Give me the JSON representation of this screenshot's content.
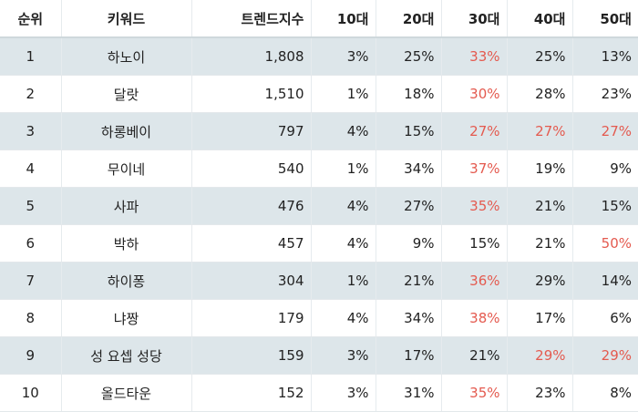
{
  "header": {
    "rank": "순위",
    "keyword": "키워드",
    "trend_index": "트렌드지수",
    "age10": "10대",
    "age20": "20대",
    "age30": "30대",
    "age40": "40대",
    "age50": "50대"
  },
  "colors": {
    "highlight": "#e45a4f",
    "row_shade": "#dde6ea"
  },
  "rows": [
    {
      "rank": "1",
      "keyword": "하노이",
      "index": "1,808",
      "a10": "3%",
      "a20": "25%",
      "a30": "33%",
      "a40": "25%",
      "a50": "13%",
      "hot": [
        "a30"
      ]
    },
    {
      "rank": "2",
      "keyword": "달랏",
      "index": "1,510",
      "a10": "1%",
      "a20": "18%",
      "a30": "30%",
      "a40": "28%",
      "a50": "23%",
      "hot": [
        "a30"
      ]
    },
    {
      "rank": "3",
      "keyword": "하롱베이",
      "index": "797",
      "a10": "4%",
      "a20": "15%",
      "a30": "27%",
      "a40": "27%",
      "a50": "27%",
      "hot": [
        "a30",
        "a40",
        "a50"
      ]
    },
    {
      "rank": "4",
      "keyword": "무이네",
      "index": "540",
      "a10": "1%",
      "a20": "34%",
      "a30": "37%",
      "a40": "19%",
      "a50": "9%",
      "hot": [
        "a30"
      ]
    },
    {
      "rank": "5",
      "keyword": "사파",
      "index": "476",
      "a10": "4%",
      "a20": "27%",
      "a30": "35%",
      "a40": "21%",
      "a50": "15%",
      "hot": [
        "a30"
      ]
    },
    {
      "rank": "6",
      "keyword": "박하",
      "index": "457",
      "a10": "4%",
      "a20": "9%",
      "a30": "15%",
      "a40": "21%",
      "a50": "50%",
      "hot": [
        "a50"
      ]
    },
    {
      "rank": "7",
      "keyword": "하이퐁",
      "index": "304",
      "a10": "1%",
      "a20": "21%",
      "a30": "36%",
      "a40": "29%",
      "a50": "14%",
      "hot": [
        "a30"
      ]
    },
    {
      "rank": "8",
      "keyword": "냐짱",
      "index": "179",
      "a10": "4%",
      "a20": "34%",
      "a30": "38%",
      "a40": "17%",
      "a50": "6%",
      "hot": [
        "a30"
      ]
    },
    {
      "rank": "9",
      "keyword": "성 요셉 성당",
      "index": "159",
      "a10": "3%",
      "a20": "17%",
      "a30": "21%",
      "a40": "29%",
      "a50": "29%",
      "hot": [
        "a40",
        "a50"
      ]
    },
    {
      "rank": "10",
      "keyword": "올드타운",
      "index": "152",
      "a10": "3%",
      "a20": "31%",
      "a30": "35%",
      "a40": "23%",
      "a50": "8%",
      "hot": [
        "a30"
      ]
    }
  ]
}
